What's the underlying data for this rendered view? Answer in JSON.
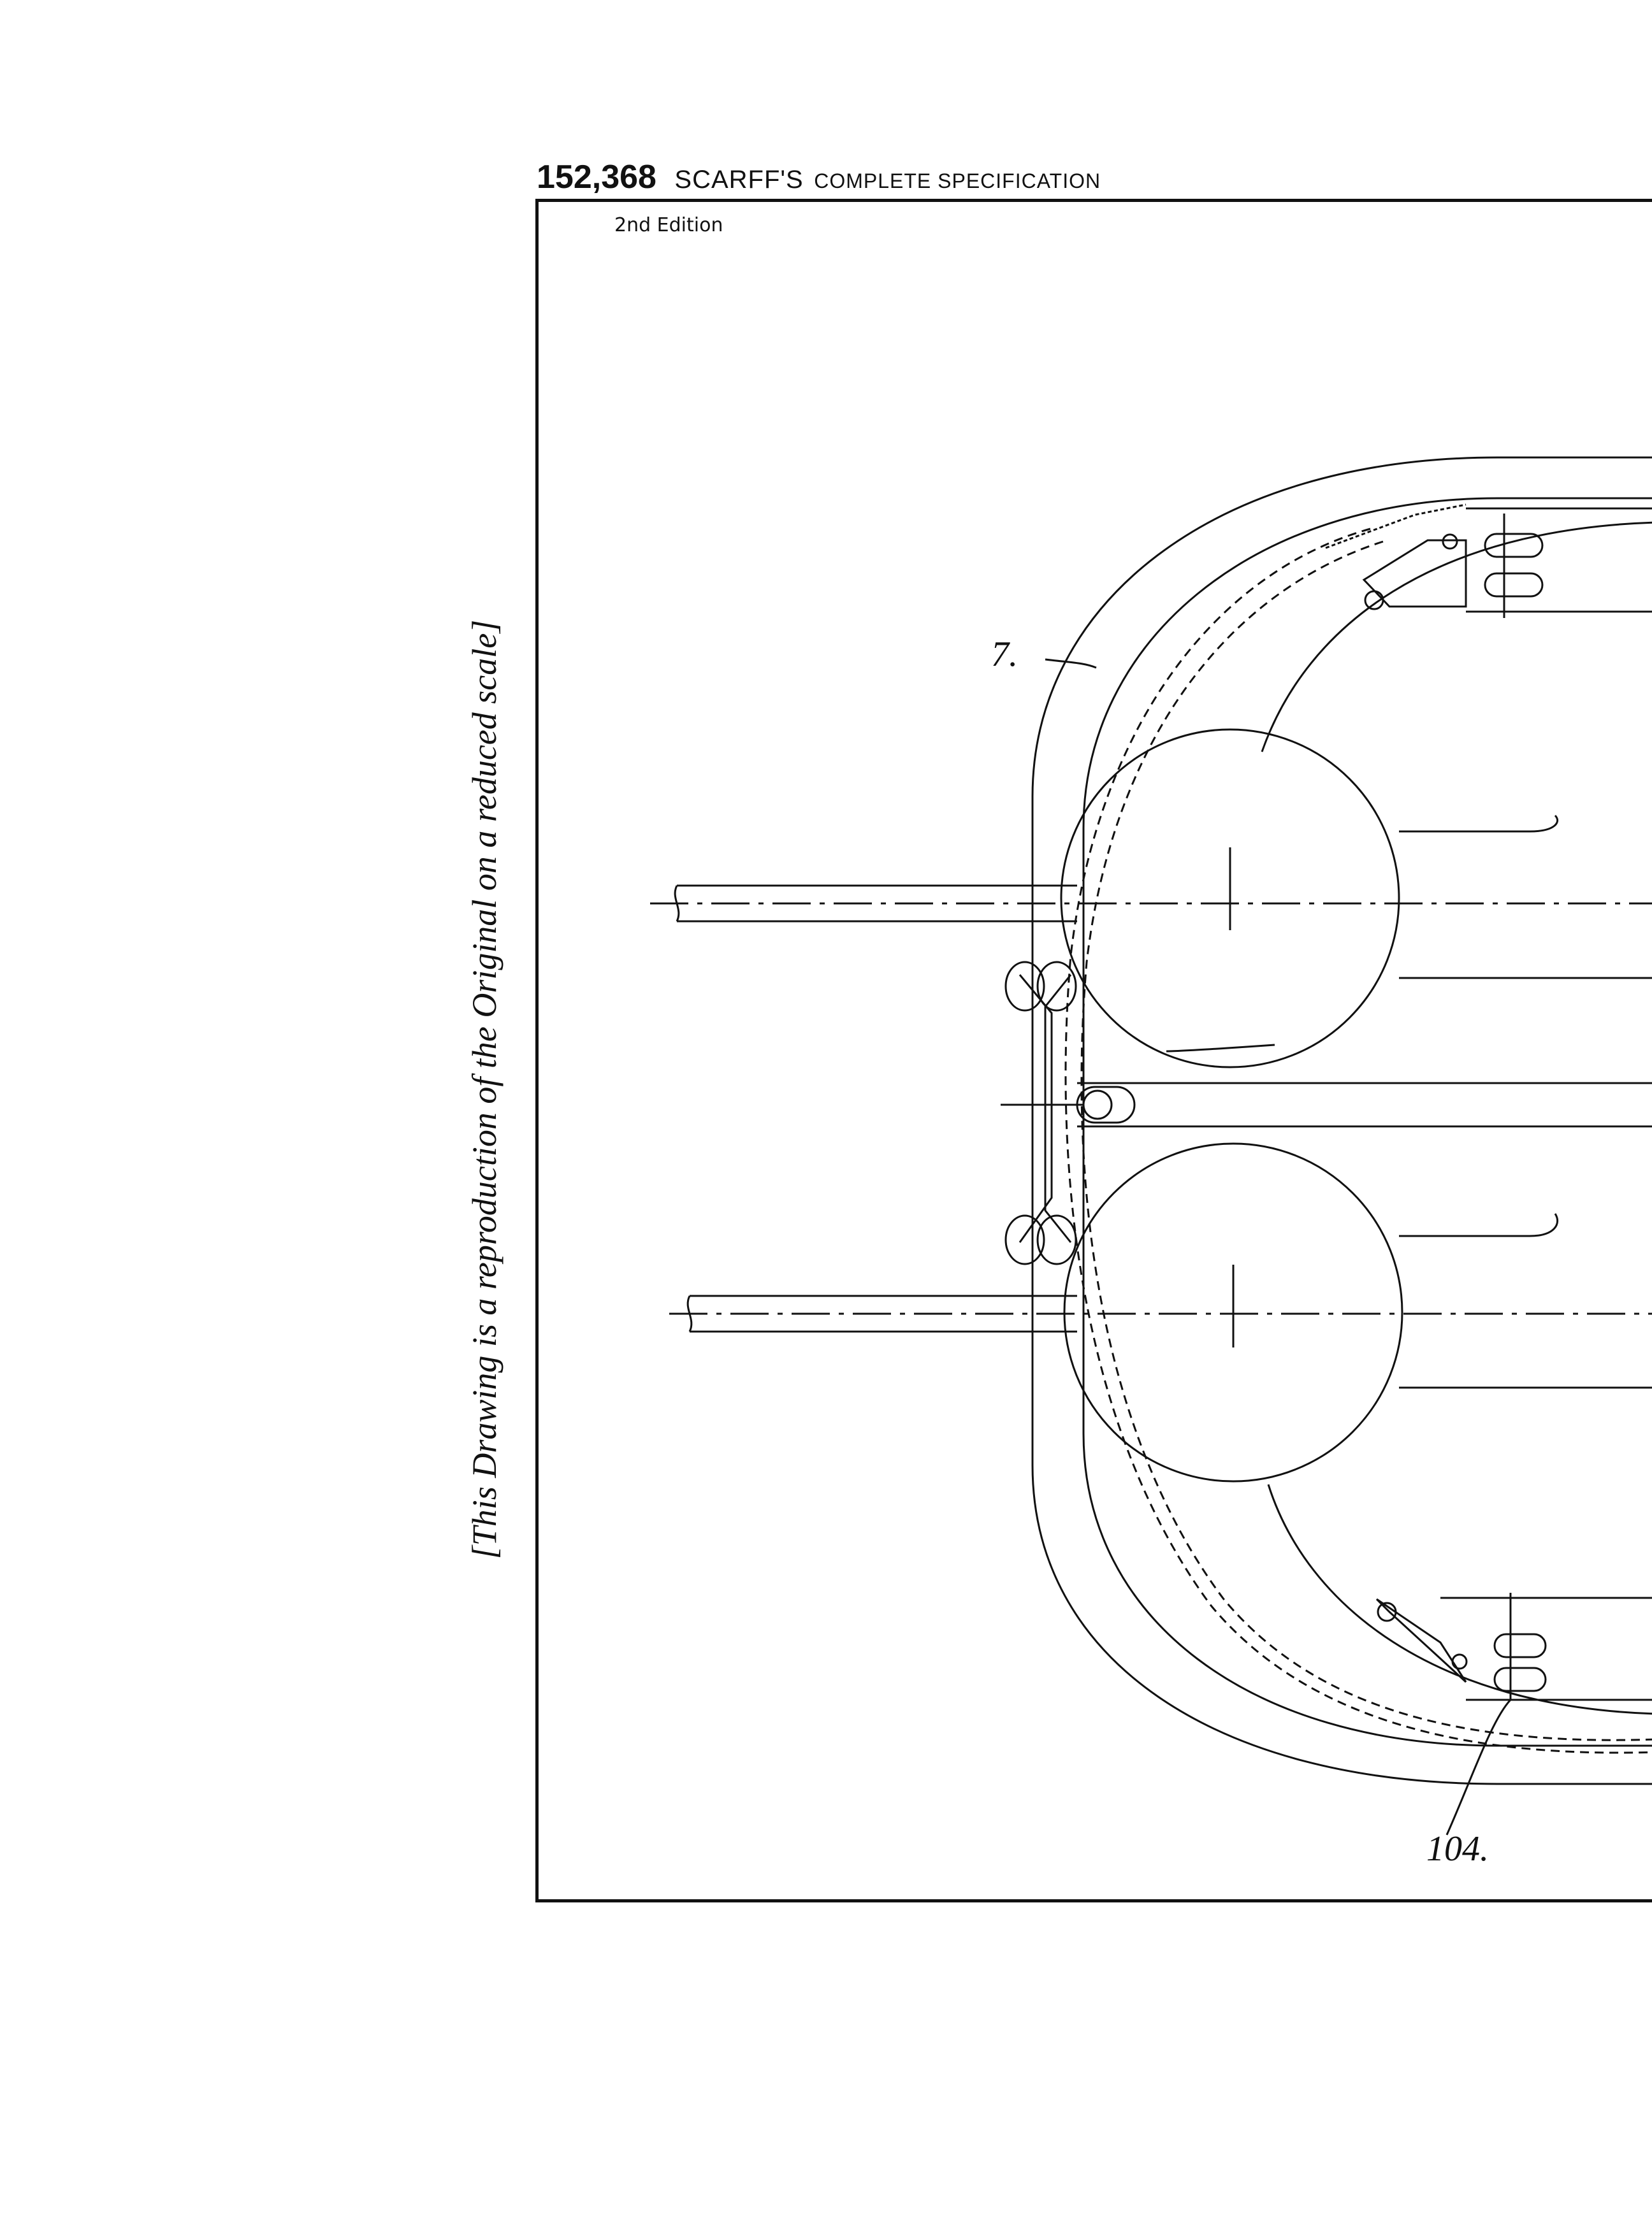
{
  "header": {
    "patent_number": "152,368",
    "applicant": "SCARFF'S",
    "document_type": "COMPLETE SPECIFICATION"
  },
  "edition": "2nd Edition",
  "side_note": "[This Drawing is a reproduction of the Original on a reduced scale]",
  "reference_labels": {
    "top": "7.",
    "bottom": "104."
  }
}
